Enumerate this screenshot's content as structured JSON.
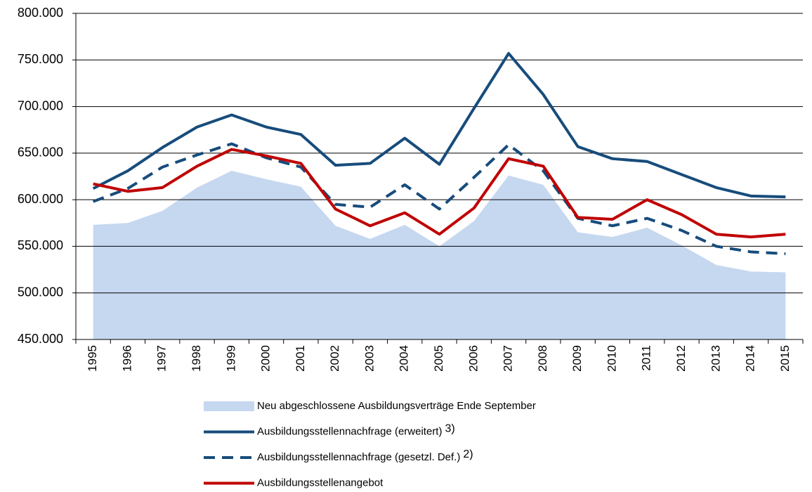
{
  "chart_data": {
    "type": "line",
    "categories": [
      "1995",
      "1996",
      "1997",
      "1998",
      "1999",
      "2000",
      "2001",
      "2002",
      "2003",
      "2004",
      "2005",
      "2006",
      "2007",
      "2008",
      "2009",
      "2010",
      "2011",
      "2012",
      "2013",
      "2014",
      "2015"
    ],
    "ylim": [
      450000,
      800000
    ],
    "yticks": [
      {
        "value": 450000,
        "label": "450.000"
      },
      {
        "value": 500000,
        "label": "500.000"
      },
      {
        "value": 550000,
        "label": "550.000"
      },
      {
        "value": 600000,
        "label": "600.000"
      },
      {
        "value": 650000,
        "label": "650.000"
      },
      {
        "value": 700000,
        "label": "700.000"
      },
      {
        "value": 750000,
        "label": "750.000"
      },
      {
        "value": 800000,
        "label": "800.000"
      }
    ],
    "grid": true,
    "legend": "bottom",
    "series": [
      {
        "name": "Neu abgeschlossene Ausbildungsverträge Ende September",
        "kind": "area",
        "color": "#c6d8f0",
        "values": [
          573000,
          575000,
          588000,
          613000,
          631000,
          622000,
          614000,
          572000,
          558000,
          573000,
          550000,
          577000,
          626000,
          616000,
          565000,
          560000,
          570000,
          551000,
          530000,
          523000,
          522000
        ]
      },
      {
        "name": "Ausbildungsstellennachfrage (erweitert)",
        "footnote": "3)",
        "kind": "solid",
        "color": "#174c7c",
        "values": [
          612000,
          631000,
          656000,
          678000,
          691000,
          678000,
          670000,
          637000,
          639000,
          666000,
          638000,
          698000,
          757000,
          713000,
          657000,
          644000,
          641000,
          627000,
          613000,
          604000,
          603000
        ]
      },
      {
        "name": "Ausbildungsstellennachfrage (gesetzl. Def.)",
        "footnote": "2)",
        "kind": "dashed",
        "color": "#174c7c",
        "values": [
          598000,
          612000,
          635000,
          648000,
          660000,
          645000,
          635000,
          595000,
          592000,
          616000,
          590000,
          624000,
          659000,
          631000,
          580000,
          572000,
          580000,
          567000,
          550000,
          544000,
          542000
        ]
      },
      {
        "name": "Ausbildungsstellenangebot",
        "kind": "solid",
        "color": "#c00000",
        "values": [
          617000,
          609000,
          613000,
          636000,
          654000,
          647000,
          639000,
          590000,
          572000,
          586000,
          563000,
          591000,
          644000,
          636000,
          581000,
          579000,
          600000,
          584000,
          563000,
          560000,
          563000
        ]
      }
    ]
  }
}
